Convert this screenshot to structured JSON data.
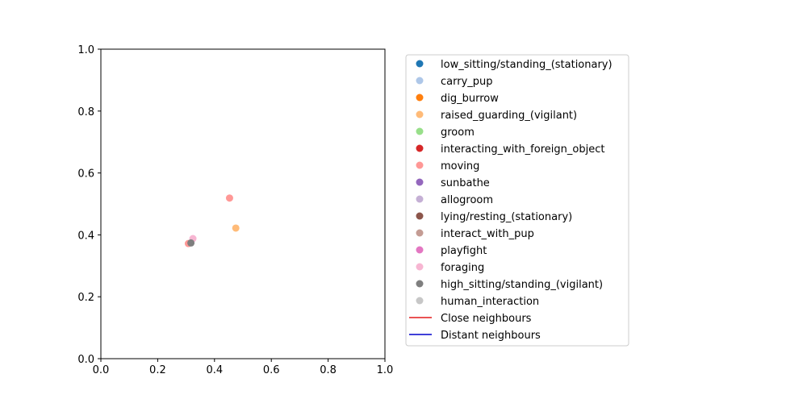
{
  "chart_data": {
    "type": "scatter",
    "title": "",
    "xlabel": "",
    "ylabel": "",
    "xlim": [
      0.0,
      1.0
    ],
    "ylim": [
      0.0,
      1.0
    ],
    "xticks": [
      "0.0",
      "0.2",
      "0.4",
      "0.6",
      "0.8",
      "1.0"
    ],
    "yticks": [
      "0.0",
      "0.2",
      "0.4",
      "0.6",
      "0.8",
      "1.0"
    ],
    "grid": false,
    "legend_position": "right-outside",
    "series": [
      {
        "name": "low_sitting/standing_(stationary)",
        "color": "#1f77b4",
        "points": []
      },
      {
        "name": "carry_pup",
        "color": "#aec7e8",
        "points": []
      },
      {
        "name": "dig_burrow",
        "color": "#ff7f0e",
        "points": []
      },
      {
        "name": "raised_guarding_(vigilant)",
        "color": "#ffbb78",
        "points": [
          [
            0.475,
            0.422
          ]
        ]
      },
      {
        "name": "groom",
        "color": "#98df8a",
        "points": []
      },
      {
        "name": "interacting_with_foreign_object",
        "color": "#d62728",
        "points": []
      },
      {
        "name": "moving",
        "color": "#ff9896",
        "points": [
          [
            0.453,
            0.519
          ],
          [
            0.308,
            0.372
          ]
        ]
      },
      {
        "name": "sunbathe",
        "color": "#9467bd",
        "points": []
      },
      {
        "name": "allogroom",
        "color": "#c5b0d5",
        "points": []
      },
      {
        "name": "lying/resting_(stationary)",
        "color": "#8c564b",
        "points": []
      },
      {
        "name": "interact_with_pup",
        "color": "#c49c94",
        "points": []
      },
      {
        "name": "playfight",
        "color": "#e377c2",
        "points": []
      },
      {
        "name": "foraging",
        "color": "#f7b6d2",
        "points": [
          [
            0.324,
            0.388
          ]
        ]
      },
      {
        "name": "high_sitting/standing_(vigilant)",
        "color": "#7f7f7f",
        "points": [
          [
            0.317,
            0.374
          ]
        ]
      },
      {
        "name": "human_interaction",
        "color": "#c7c7c7",
        "points": []
      }
    ],
    "lines": [
      {
        "name": "Close neighbours",
        "color": "#e41a1c",
        "points": [
          [
            0.312,
            0.372
          ],
          [
            0.32,
            0.38
          ]
        ]
      },
      {
        "name": "Distant neighbours",
        "color": "#0000cc",
        "points": [
          [
            0.315,
            0.376
          ],
          [
            0.322,
            0.383
          ]
        ]
      }
    ]
  }
}
